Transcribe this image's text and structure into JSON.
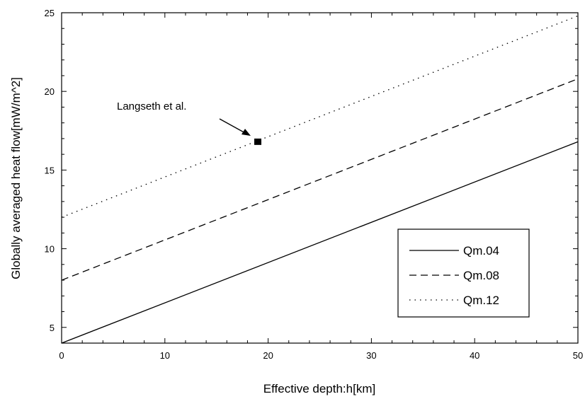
{
  "chart_data": {
    "type": "line",
    "title": "",
    "xlabel": "Effective depth:h[km]",
    "ylabel": "Globally averaged heat flow[mW/m^2]",
    "xlim": [
      0,
      50
    ],
    "ylim": [
      4,
      25
    ],
    "xticks": [
      "0",
      "10",
      "20",
      "30",
      "40",
      "50"
    ],
    "yticks": [
      "5",
      "10",
      "15",
      "20",
      "25"
    ],
    "grid": false,
    "legend_position": "bottom-right",
    "series": [
      {
        "name": "Qm.04",
        "style": "solid",
        "x": [
          0,
          50
        ],
        "values": [
          4.0,
          16.8
        ]
      },
      {
        "name": "Qm.08",
        "style": "dashed",
        "x": [
          0,
          50
        ],
        "values": [
          8.0,
          20.8
        ]
      },
      {
        "name": "Qm.12",
        "style": "dotted",
        "x": [
          0,
          50
        ],
        "values": [
          12.0,
          24.8
        ]
      }
    ],
    "annotations": [
      {
        "text": "Langseth et al.",
        "x": 19,
        "y": 16.8,
        "marker": "square"
      }
    ]
  }
}
